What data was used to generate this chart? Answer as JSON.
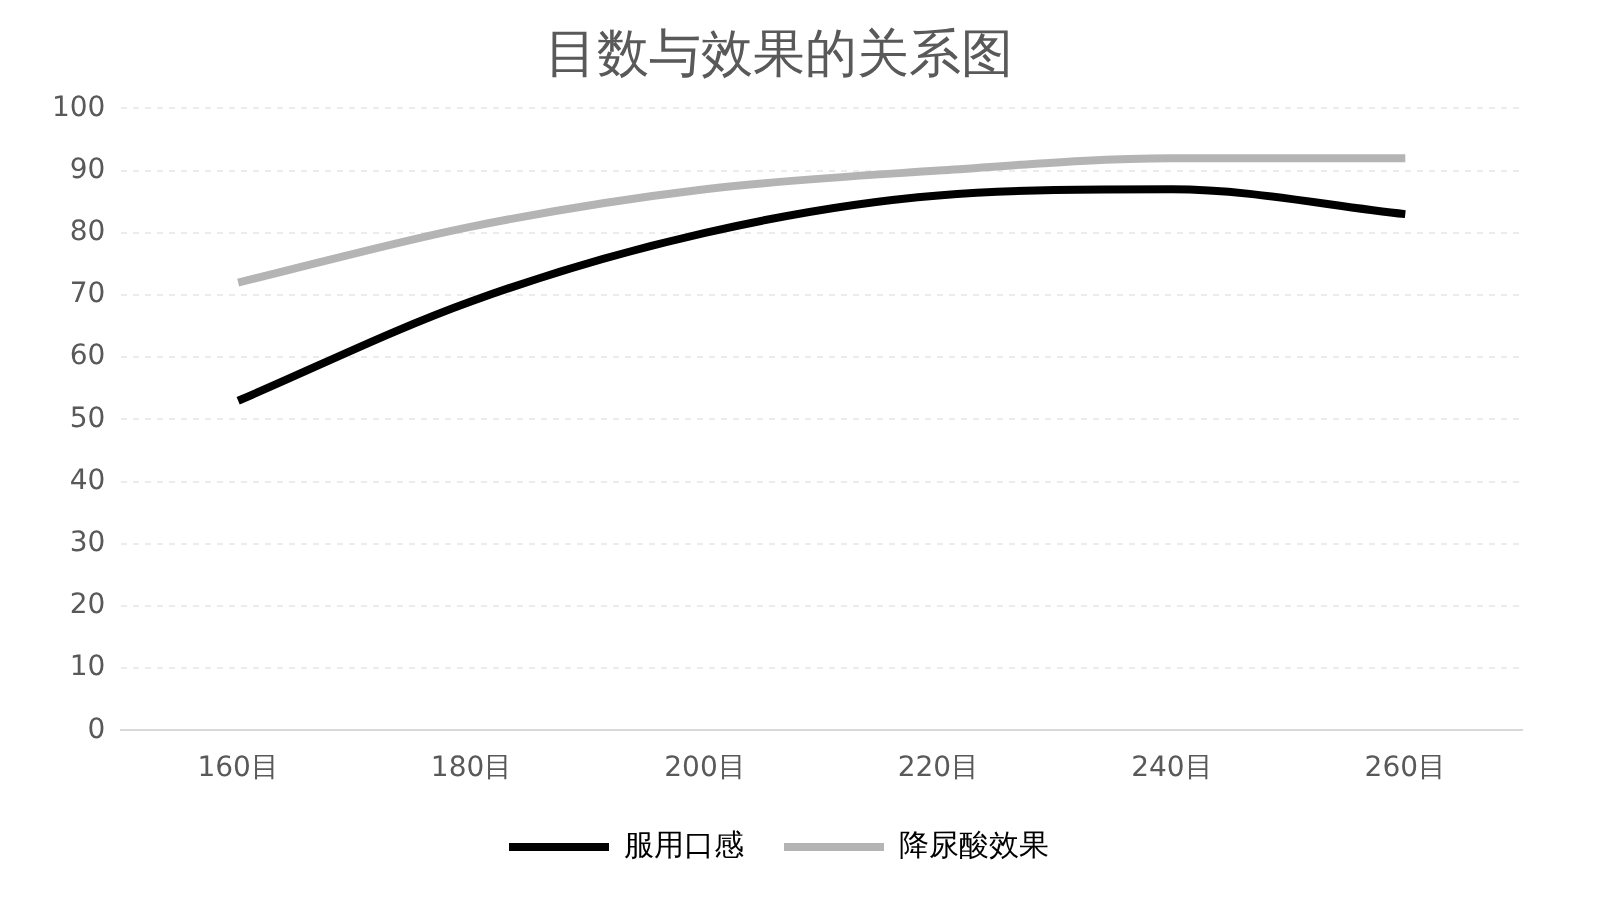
{
  "chart_data": {
    "type": "line",
    "title": "目数与效果的关系图",
    "categories": [
      "160目",
      "180目",
      "200目",
      "220目",
      "240目",
      "260目"
    ],
    "series": [
      {
        "name": "服用口感",
        "color": "#000000",
        "values": [
          53,
          69,
          80,
          86,
          87,
          83
        ]
      },
      {
        "name": "降尿酸效果",
        "color": "#b4b4b4",
        "values": [
          72,
          81,
          87,
          90,
          92,
          92
        ]
      }
    ],
    "ylim": [
      0,
      100
    ],
    "yticks": [
      0,
      10,
      20,
      30,
      40,
      50,
      60,
      70,
      80,
      90,
      100
    ],
    "grid": "y",
    "legend": "bottom",
    "marker": "none",
    "line_style": "solid"
  }
}
